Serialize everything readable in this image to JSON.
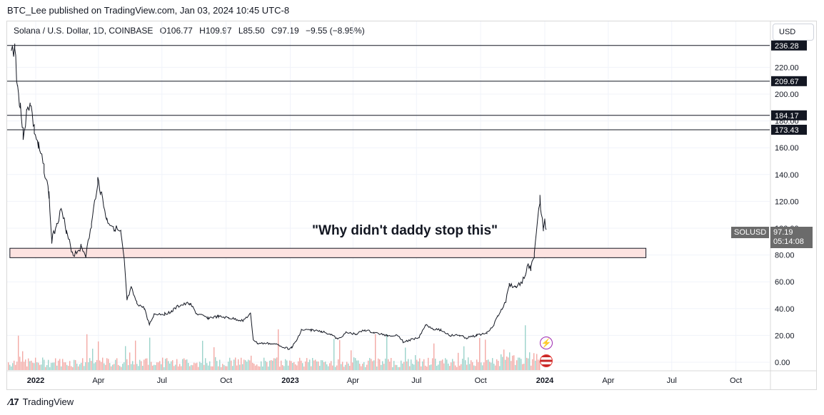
{
  "header": {
    "publish_line": "BTC_Lee published on TradingView.com, Jan 03, 2024 10:45 UTC-8"
  },
  "legend": {
    "symbol": "Solana / U.S. Dollar, 1D, COINBASE",
    "open": "O106.77",
    "high": "H109.97",
    "low": "L85.50",
    "close": "C97.19",
    "change": "−9.55 (−8.95%)"
  },
  "currency_button": "USD",
  "annotation": "\"Why didn't daddy stop this\"",
  "price_label": {
    "symbol": "SOLUSD",
    "price": "97.19",
    "countdown": "05:14:08"
  },
  "footer": {
    "brand": "TradingView"
  },
  "colors": {
    "candles": "#131722",
    "volume_up": "#9bd3ca",
    "volume_down": "#f3a9a5",
    "zone_fill": "#fde3e1",
    "level_tag_bg": "#131722"
  },
  "icons": [
    "lightning-event-icon",
    "us-flag-event-icon",
    "tradingview-logo-icon"
  ],
  "chart_data": {
    "type": "line",
    "title": "Solana / U.S. Dollar, 1D, COINBASE",
    "y_ticks": [
      "0.00",
      "20.00",
      "40.00",
      "60.00",
      "80.00",
      "100.00",
      "120.00",
      "140.00",
      "160.00",
      "180.00",
      "200.00",
      "220.00"
    ],
    "x_ticks": [
      "2022",
      "Apr",
      "Jul",
      "Oct",
      "2023",
      "Apr",
      "Jul",
      "Oct",
      "2024",
      "Apr",
      "Jul",
      "Oct"
    ],
    "ylim": [
      0,
      240
    ],
    "horizontal_levels": [
      "236.28",
      "209.67",
      "184.17",
      "173.43"
    ],
    "demand_zone": {
      "from_date": "2021-11-25",
      "to_date": "2024-05-25",
      "low": 78,
      "high": 85
    },
    "series": [
      {
        "price_path": [
          [
            "2021-11-27",
            230
          ],
          [
            "2021-12-02",
            236
          ],
          [
            "2021-12-06",
            205
          ],
          [
            "2021-12-10",
            192
          ],
          [
            "2021-12-14",
            170
          ],
          [
            "2021-12-19",
            185
          ],
          [
            "2021-12-24",
            195
          ],
          [
            "2021-12-30",
            173
          ],
          [
            "2022-01-05",
            160
          ],
          [
            "2022-01-13",
            145
          ],
          [
            "2022-01-20",
            125
          ],
          [
            "2022-01-24",
            90
          ],
          [
            "2022-01-31",
            104
          ],
          [
            "2022-02-08",
            115
          ],
          [
            "2022-02-14",
            96
          ],
          [
            "2022-02-24",
            80
          ],
          [
            "2022-03-07",
            86
          ],
          [
            "2022-03-14",
            80
          ],
          [
            "2022-03-22",
            102
          ],
          [
            "2022-03-31",
            136
          ],
          [
            "2022-04-04",
            128
          ],
          [
            "2022-04-13",
            106
          ],
          [
            "2022-04-25",
            100
          ],
          [
            "2022-05-03",
            96
          ],
          [
            "2022-05-08",
            75
          ],
          [
            "2022-05-12",
            46
          ],
          [
            "2022-05-18",
            55
          ],
          [
            "2022-05-26",
            44
          ],
          [
            "2022-06-06",
            40
          ],
          [
            "2022-06-13",
            28
          ],
          [
            "2022-06-20",
            36
          ],
          [
            "2022-07-05",
            36
          ],
          [
            "2022-07-15",
            38
          ],
          [
            "2022-07-25",
            42
          ],
          [
            "2022-08-10",
            44
          ],
          [
            "2022-08-20",
            36
          ],
          [
            "2022-09-05",
            33
          ],
          [
            "2022-09-20",
            34
          ],
          [
            "2022-10-05",
            33
          ],
          [
            "2022-10-25",
            31
          ],
          [
            "2022-11-05",
            36
          ],
          [
            "2022-11-09",
            17
          ],
          [
            "2022-11-15",
            14
          ],
          [
            "2022-12-01",
            14
          ],
          [
            "2022-12-15",
            13
          ],
          [
            "2022-12-29",
            10
          ],
          [
            "2023-01-03",
            11
          ],
          [
            "2023-01-10",
            16
          ],
          [
            "2023-01-17",
            24
          ],
          [
            "2023-01-31",
            24
          ],
          [
            "2023-02-15",
            23
          ],
          [
            "2023-02-28",
            21
          ],
          [
            "2023-03-10",
            17
          ],
          [
            "2023-03-22",
            22
          ],
          [
            "2023-04-05",
            21
          ],
          [
            "2023-04-18",
            24
          ],
          [
            "2023-05-01",
            22
          ],
          [
            "2023-05-20",
            20
          ],
          [
            "2023-06-05",
            20
          ],
          [
            "2023-06-12",
            15
          ],
          [
            "2023-06-25",
            17
          ],
          [
            "2023-07-05",
            19
          ],
          [
            "2023-07-14",
            28
          ],
          [
            "2023-07-25",
            25
          ],
          [
            "2023-08-05",
            24
          ],
          [
            "2023-08-18",
            20
          ],
          [
            "2023-09-01",
            20
          ],
          [
            "2023-09-11",
            18
          ],
          [
            "2023-09-25",
            20
          ],
          [
            "2023-10-10",
            22
          ],
          [
            "2023-10-20",
            28
          ],
          [
            "2023-10-25",
            34
          ],
          [
            "2023-11-01",
            40
          ],
          [
            "2023-11-06",
            45
          ],
          [
            "2023-11-11",
            58
          ],
          [
            "2023-11-20",
            56
          ],
          [
            "2023-11-28",
            59
          ],
          [
            "2023-12-04",
            65
          ],
          [
            "2023-12-08",
            72
          ],
          [
            "2023-12-12",
            70
          ],
          [
            "2023-12-17",
            80
          ],
          [
            "2023-12-20",
            95
          ],
          [
            "2023-12-25",
            122
          ],
          [
            "2023-12-27",
            110
          ],
          [
            "2023-12-30",
            100
          ],
          [
            "2024-01-01",
            108
          ],
          [
            "2024-01-03",
            97
          ]
        ]
      }
    ],
    "volume": {
      "note": "histogram below price, alternating up/down colors"
    }
  }
}
